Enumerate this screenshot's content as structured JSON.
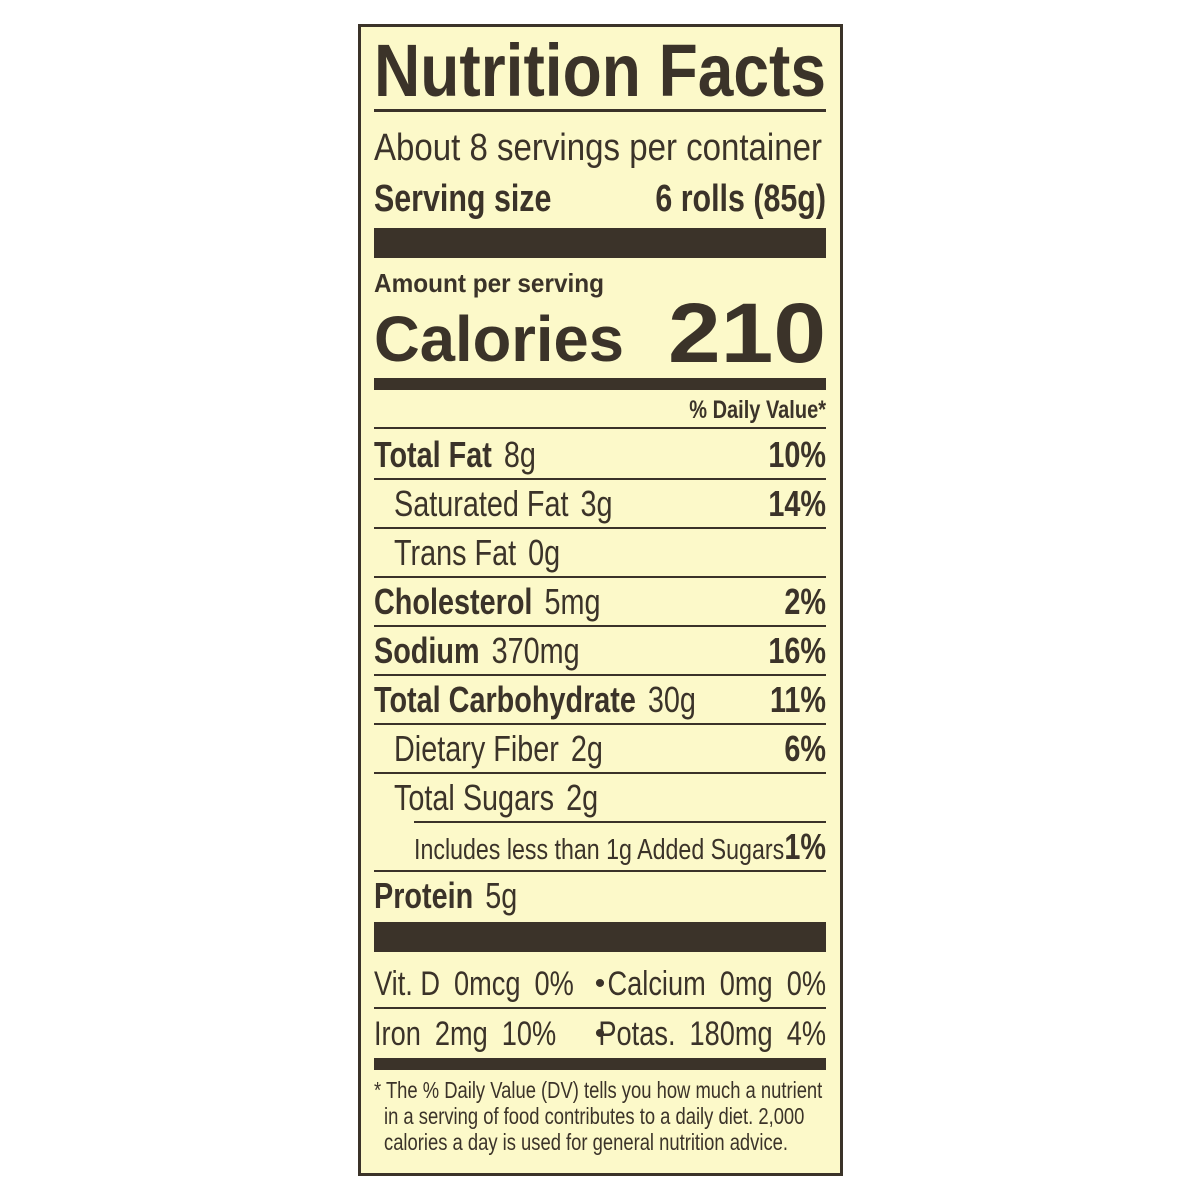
{
  "title": "Nutrition Facts",
  "servings": "About 8 servings per container",
  "serving_size": {
    "label": "Serving size",
    "value": "6 rolls (85g)"
  },
  "amount_per_serving": "Amount per serving",
  "calories": {
    "label": "Calories",
    "value": 210
  },
  "daily_value_header": "% Daily Value*",
  "nutrients": [
    {
      "name": "Total Fat",
      "amount": "8g",
      "dv": "10%"
    },
    {
      "name": "Saturated Fat",
      "amount": "3g",
      "dv": "14%"
    },
    {
      "name": "Trans Fat",
      "amount": "0g"
    },
    {
      "name": "Cholesterol",
      "amount": "5mg",
      "dv": "2%"
    },
    {
      "name": "Sodium",
      "amount": "370mg",
      "dv": "16%"
    },
    {
      "name": "Total Carbohydrate",
      "amount": "30g",
      "dv": "11%"
    },
    {
      "name": "Dietary Fiber",
      "amount": "2g",
      "dv": "6%"
    },
    {
      "name": "Total Sugars",
      "amount": "2g"
    },
    {
      "name": "Includes less than 1g Added Sugars",
      "dv": "1%"
    },
    {
      "name": "Protein",
      "amount": "5g"
    }
  ],
  "micronutrients": [
    {
      "name": "Vit. D",
      "amount": "0mcg",
      "dv": "0%"
    },
    {
      "name": "Calcium",
      "amount": "0mg",
      "dv": "0%"
    },
    {
      "name": "Iron",
      "amount": "2mg",
      "dv": "10%"
    },
    {
      "name": "Potas.",
      "amount": "180mg",
      "dv": "4%"
    }
  ],
  "footnote": [
    "* The % Daily Value (DV) tells you how much a nutrient",
    "in a serving of food contributes to a daily diet. 2,000",
    "calories a day is used for general nutrition advice."
  ]
}
